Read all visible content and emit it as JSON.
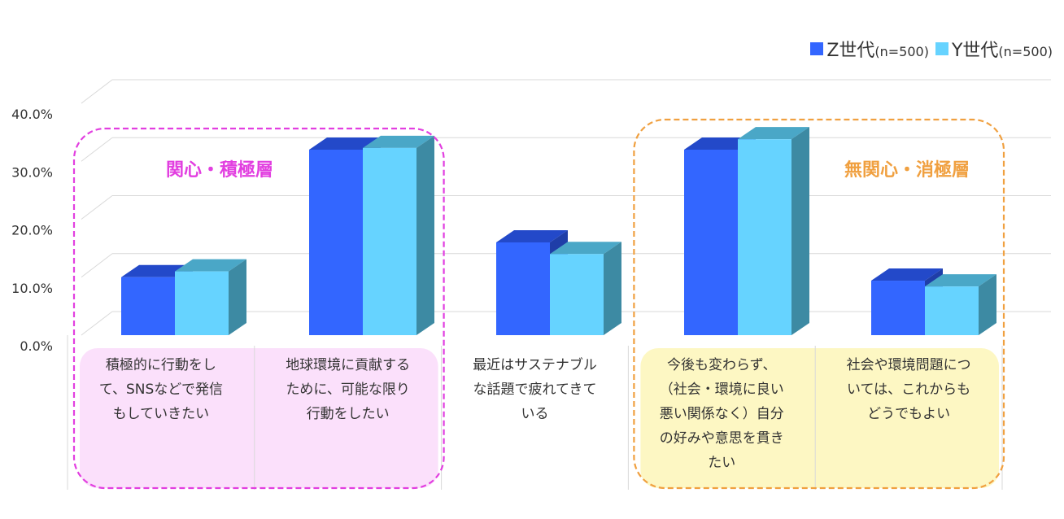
{
  "chart_data": {
    "type": "bar",
    "categories": [
      "積極的に行動をして、SNSなどで発信もしていきたい",
      "地球環境に貢献するために、可能な限り行動をしたい",
      "最近はサステナブルな話題で疲れてきている",
      "今後も変わらず、（社会・環境に良い悪い関係なく）自分の好みや意思を貫きたい",
      "社会や環境問題については、これからもどうでもよい"
    ],
    "category_lines": [
      [
        "積極的に行動をし",
        "て、SNSなどで発信",
        "もしていきたい"
      ],
      [
        "地球環境に貢献する",
        "ために、可能な限り",
        "行動をしたい"
      ],
      [
        "最近はサステナブル",
        "な話題で疲れてきて",
        "いる"
      ],
      [
        "今後も変わらず、",
        "（社会・環境に良い",
        "悪い関係なく）自分",
        "の好みや意思を貫き",
        "たい"
      ],
      [
        "社会や環境問題につ",
        "いては、これからも",
        "どうでもよい"
      ]
    ],
    "series": [
      {
        "name": "Z世代",
        "n_label": "(n=500)",
        "values": [
          10.0,
          32.0,
          16.0,
          32.0,
          9.4
        ]
      },
      {
        "name": "Y世代",
        "n_label": "(n=500)",
        "values": [
          11.0,
          32.3,
          14.0,
          33.8,
          8.4
        ]
      }
    ],
    "y_ticks": [
      "0.0%",
      "10.0%",
      "20.0%",
      "30.0%",
      "40.0%"
    ],
    "ylim": [
      0,
      40
    ],
    "grid": true,
    "legend": "top-right",
    "groups": [
      {
        "label": "関心・積極層",
        "categories": [
          0,
          1
        ],
        "color": "#e23fe0",
        "fill": "#fbe0fb"
      },
      {
        "label": "無関心・消極層",
        "categories": [
          3,
          4
        ],
        "color": "#f0a040",
        "fill": "#fdf7c3"
      }
    ],
    "colors": {
      "z_front": "#3366ff",
      "z_top": "#2349c9",
      "z_side": "#1f3ea8",
      "y_front": "#66d3ff",
      "y_top": "#4aa7c7",
      "y_side": "#3d8aa3",
      "grid": "#d9d9d9",
      "text": "#333333"
    }
  }
}
